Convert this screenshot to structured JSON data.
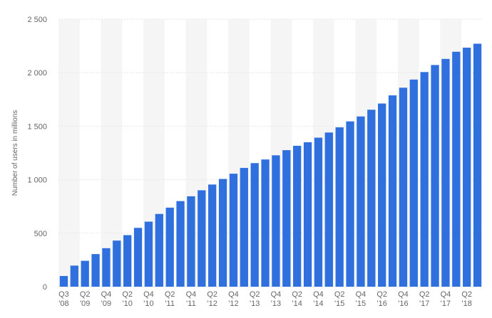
{
  "chart_data": {
    "type": "bar",
    "y_axis_label": "Number of users in millions",
    "categories": [
      "Q3 '08",
      null,
      "Q2 '09",
      null,
      "Q4 '09",
      null,
      "Q2 '10",
      null,
      "Q4 '10",
      null,
      "Q2 '11",
      null,
      "Q4 '11",
      null,
      "Q2 '12",
      null,
      "Q4 '12",
      null,
      "Q2 '13",
      null,
      "Q4 '13",
      null,
      "Q2 '14",
      null,
      "Q4 '14",
      null,
      "Q2 '15",
      null,
      "Q4 '15",
      null,
      "Q2 '16",
      null,
      "Q4 '16",
      null,
      "Q2 '17",
      null,
      "Q4 '17",
      null,
      "Q2 '18",
      null
    ],
    "values": [
      100,
      197,
      242,
      305,
      360,
      431,
      482,
      550,
      608,
      680,
      739,
      800,
      845,
      901,
      955,
      1007,
      1056,
      1110,
      1155,
      1189,
      1228,
      1276,
      1317,
      1350,
      1393,
      1441,
      1490,
      1545,
      1591,
      1654,
      1712,
      1788,
      1860,
      1936,
      2006,
      2072,
      2129,
      2196,
      2234,
      2271
    ],
    "color": "#2f6fde",
    "ylim": [
      0,
      2500
    ],
    "yticks": [
      0,
      500,
      {
        "value": 1000,
        "label": "1 000"
      },
      {
        "value": 1500,
        "label": "1 500"
      },
      {
        "value": 2000,
        "label": "2 000"
      },
      {
        "value": 2500,
        "label": "2 500"
      }
    ],
    "grid": true
  }
}
